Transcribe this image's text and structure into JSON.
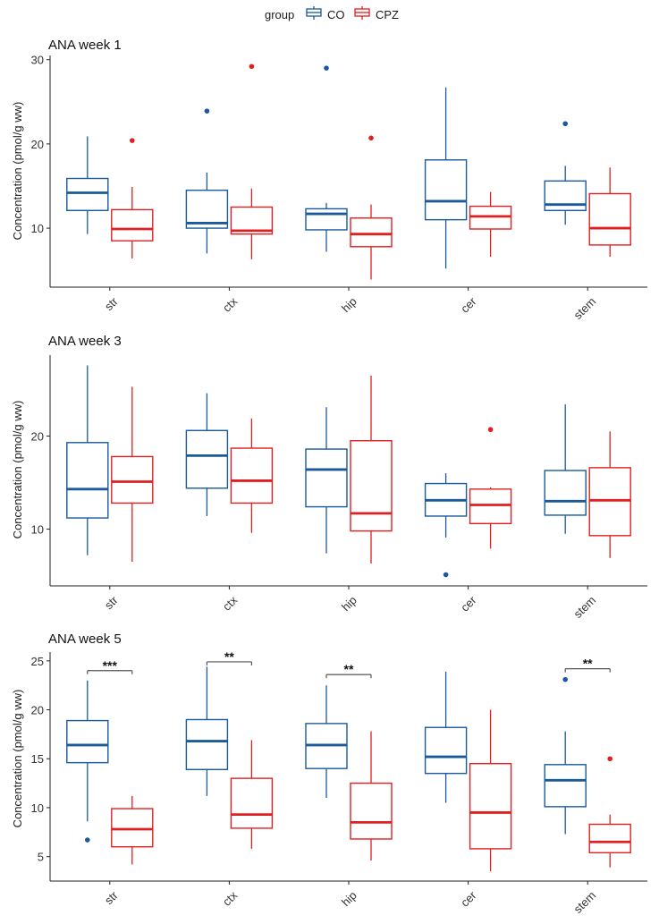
{
  "legend": {
    "title": "group",
    "entries": [
      {
        "label": "CO",
        "color": "#1a5a9a"
      },
      {
        "label": "CPZ",
        "color": "#e02020"
      }
    ]
  },
  "chart_data": [
    {
      "type": "box",
      "title": "ANA week 1",
      "ylabel": "Concentration (pmol/g ww)",
      "categories": [
        "str",
        "ctx",
        "hip",
        "cer",
        "stem"
      ],
      "ylim": [
        3,
        30.5
      ],
      "yticks": [
        10,
        20,
        30
      ],
      "series": [
        {
          "name": "CO",
          "boxes": [
            {
              "min": 9.3,
              "q1": 12.1,
              "median": 14.2,
              "q3": 15.9,
              "max": 20.9,
              "outliers": []
            },
            {
              "min": 7.0,
              "q1": 10.0,
              "median": 10.6,
              "q3": 14.5,
              "max": 16.6,
              "outliers": [
                23.9
              ]
            },
            {
              "min": 7.2,
              "q1": 9.8,
              "median": 11.7,
              "q3": 12.3,
              "max": 13.0,
              "outliers": [
                29.0
              ]
            },
            {
              "min": 5.2,
              "q1": 11.0,
              "median": 13.2,
              "q3": 18.1,
              "max": 26.7,
              "outliers": []
            },
            {
              "min": 10.4,
              "q1": 12.1,
              "median": 12.8,
              "q3": 15.6,
              "max": 17.4,
              "outliers": [
                22.4
              ]
            }
          ]
        },
        {
          "name": "CPZ",
          "boxes": [
            {
              "min": 6.4,
              "q1": 8.5,
              "median": 9.9,
              "q3": 12.2,
              "max": 14.9,
              "outliers": [
                20.4
              ]
            },
            {
              "min": 6.3,
              "q1": 9.3,
              "median": 9.7,
              "q3": 12.5,
              "max": 14.7,
              "outliers": [
                29.2
              ]
            },
            {
              "min": 3.9,
              "q1": 7.8,
              "median": 9.3,
              "q3": 11.2,
              "max": 12.8,
              "outliers": [
                20.7
              ]
            },
            {
              "min": 6.6,
              "q1": 9.9,
              "median": 11.4,
              "q3": 12.6,
              "max": 14.3,
              "outliers": []
            },
            {
              "min": 6.6,
              "q1": 8.0,
              "median": 10.0,
              "q3": 14.1,
              "max": 17.2,
              "outliers": []
            }
          ]
        }
      ],
      "annotations": []
    },
    {
      "type": "box",
      "title": "ANA week 3",
      "ylabel": "Concentration (pmol/g ww)",
      "categories": [
        "str",
        "ctx",
        "hip",
        "cer",
        "stem"
      ],
      "ylim": [
        3.9,
        28.7
      ],
      "yticks": [
        10,
        20
      ],
      "series": [
        {
          "name": "CO",
          "boxes": [
            {
              "min": 7.2,
              "q1": 11.2,
              "median": 14.3,
              "q3": 19.3,
              "max": 27.6,
              "outliers": []
            },
            {
              "min": 11.4,
              "q1": 14.4,
              "median": 17.9,
              "q3": 20.6,
              "max": 24.6,
              "outliers": []
            },
            {
              "min": 7.4,
              "q1": 12.4,
              "median": 16.4,
              "q3": 18.6,
              "max": 23.1,
              "outliers": []
            },
            {
              "min": 9.1,
              "q1": 11.4,
              "median": 13.1,
              "q3": 14.9,
              "max": 16.0,
              "outliers": [
                5.1
              ]
            },
            {
              "min": 9.5,
              "q1": 11.5,
              "median": 13.0,
              "q3": 16.3,
              "max": 23.4,
              "outliers": []
            }
          ]
        },
        {
          "name": "CPZ",
          "boxes": [
            {
              "min": 6.5,
              "q1": 12.8,
              "median": 15.1,
              "q3": 17.8,
              "max": 25.3,
              "outliers": []
            },
            {
              "min": 9.6,
              "q1": 12.8,
              "median": 15.2,
              "q3": 18.7,
              "max": 21.9,
              "outliers": []
            },
            {
              "min": 6.3,
              "q1": 9.8,
              "median": 11.7,
              "q3": 19.5,
              "max": 26.5,
              "outliers": []
            },
            {
              "min": 7.9,
              "q1": 10.6,
              "median": 12.6,
              "q3": 14.3,
              "max": 14.5,
              "outliers": [
                20.7
              ]
            },
            {
              "min": 6.9,
              "q1": 9.3,
              "median": 13.1,
              "q3": 16.6,
              "max": 20.5,
              "outliers": []
            }
          ]
        }
      ],
      "annotations": []
    },
    {
      "type": "box",
      "title": "ANA week 5",
      "ylabel": "Concentration (pmol/g ww)",
      "categories": [
        "str",
        "ctx",
        "hip",
        "cer",
        "stem"
      ],
      "ylim": [
        2.5,
        25.9
      ],
      "yticks": [
        5,
        10,
        15,
        20,
        25
      ],
      "series": [
        {
          "name": "CO",
          "boxes": [
            {
              "min": 8.6,
              "q1": 14.6,
              "median": 16.4,
              "q3": 18.9,
              "max": 23.0,
              "outliers": [
                6.7
              ]
            },
            {
              "min": 11.2,
              "q1": 13.9,
              "median": 16.8,
              "q3": 19.0,
              "max": 24.4,
              "outliers": []
            },
            {
              "min": 11.0,
              "q1": 14.0,
              "median": 16.4,
              "q3": 18.6,
              "max": 22.5,
              "outliers": []
            },
            {
              "min": 10.5,
              "q1": 13.5,
              "median": 15.2,
              "q3": 18.2,
              "max": 23.9,
              "outliers": []
            },
            {
              "min": 7.3,
              "q1": 10.1,
              "median": 12.8,
              "q3": 14.4,
              "max": 17.8,
              "outliers": [
                23.1
              ]
            }
          ]
        },
        {
          "name": "CPZ",
          "boxes": [
            {
              "min": 4.2,
              "q1": 6.0,
              "median": 7.8,
              "q3": 9.9,
              "max": 11.2,
              "outliers": []
            },
            {
              "min": 5.8,
              "q1": 7.9,
              "median": 9.3,
              "q3": 13.0,
              "max": 16.9,
              "outliers": []
            },
            {
              "min": 4.6,
              "q1": 6.8,
              "median": 8.5,
              "q3": 12.5,
              "max": 17.8,
              "outliers": []
            },
            {
              "min": 3.5,
              "q1": 5.8,
              "median": 9.5,
              "q3": 14.5,
              "max": 20.0,
              "outliers": []
            },
            {
              "min": 3.9,
              "q1": 5.4,
              "median": 6.5,
              "q3": 8.3,
              "max": 9.3,
              "outliers": [
                15.0
              ]
            }
          ]
        }
      ],
      "annotations": [
        {
          "category": "str",
          "label": "***",
          "y": 24.0
        },
        {
          "category": "ctx",
          "label": "**",
          "y": 24.9
        },
        {
          "category": "hip",
          "label": "**",
          "y": 23.6
        },
        {
          "category": "stem",
          "label": "**",
          "y": 24.2
        }
      ]
    }
  ]
}
